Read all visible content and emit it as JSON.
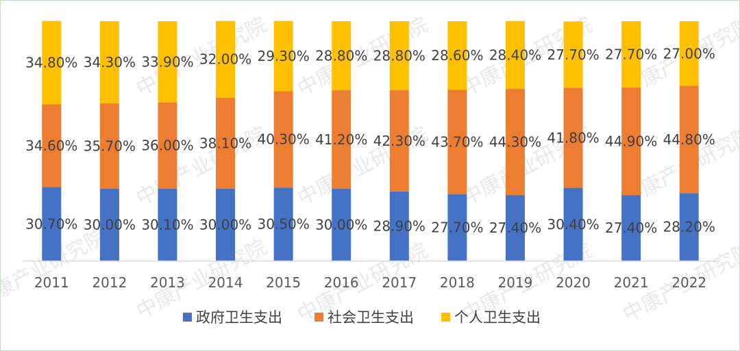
{
  "watermark": "中康产业研究院",
  "colors": {
    "gov": "#4472C4",
    "social": "#ED7D31",
    "personal": "#FFC000",
    "axis": "#d9d9d9"
  },
  "chart_data": {
    "type": "bar",
    "stacked": true,
    "percent_stacked": true,
    "title": "",
    "xlabel": "",
    "ylabel": "",
    "ylim": [
      0,
      100
    ],
    "grid": false,
    "legend_position": "bottom",
    "categories": [
      "2011",
      "2012",
      "2013",
      "2014",
      "2015",
      "2016",
      "2017",
      "2018",
      "2019",
      "2020",
      "2021",
      "2022"
    ],
    "series": [
      {
        "name": "政府卫生支出",
        "color": "#4472C4",
        "values": [
          30.7,
          30.0,
          30.1,
          30.0,
          30.5,
          30.0,
          28.9,
          27.7,
          27.4,
          30.4,
          27.4,
          28.2
        ],
        "labels": [
          "30.70%",
          "30.00%",
          "30.10%",
          "30.00%",
          "30.50%",
          "30.00%",
          "28.90%",
          "27.70%",
          "27.40%",
          "30.40%",
          "27.40%",
          "28.20%"
        ]
      },
      {
        "name": "社会卫生支出",
        "color": "#ED7D31",
        "values": [
          34.6,
          35.7,
          36.0,
          38.1,
          40.3,
          41.2,
          42.3,
          43.7,
          44.3,
          41.8,
          44.9,
          44.8
        ],
        "labels": [
          "34.60%",
          "35.70%",
          "36.00%",
          "38.10%",
          "40.30%",
          "41.20%",
          "42.30%",
          "43.70%",
          "44.30%",
          "41.80%",
          "44.90%",
          "44.80%"
        ]
      },
      {
        "name": "个人卫生支出",
        "color": "#FFC000",
        "values": [
          34.8,
          34.3,
          33.9,
          32.0,
          29.3,
          28.8,
          28.8,
          28.6,
          28.4,
          27.7,
          27.7,
          27.0
        ],
        "labels": [
          "34.80%",
          "34.30%",
          "33.90%",
          "32.00%",
          "29.30%",
          "28.80%",
          "28.80%",
          "28.60%",
          "28.40%",
          "27.70%",
          "27.70%",
          "27.00%"
        ]
      }
    ]
  }
}
